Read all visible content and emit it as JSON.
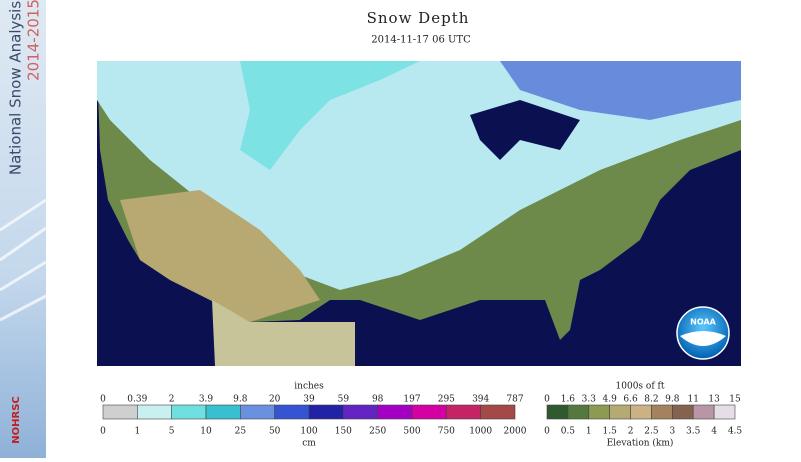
{
  "header": {
    "title": "Snow Depth",
    "subtitle": "2014-11-17 06 UTC"
  },
  "sidebar": {
    "name": "National Snow Analysis",
    "years": "2014-2015",
    "agency": "NOHRSC"
  },
  "logo": "NOAA",
  "snow_legend": {
    "top_title": "inches",
    "bottom_title": "cm",
    "top_labels": [
      0,
      0.39,
      2,
      3.9,
      9.8,
      20,
      39,
      59,
      98,
      197,
      295,
      394,
      787
    ],
    "bottom_labels": [
      0,
      1,
      5,
      10,
      25,
      50,
      100,
      150,
      250,
      500,
      750,
      1000,
      2000
    ],
    "colors": [
      "#cfcfcf",
      "#c8f0f0",
      "#6ee0e0",
      "#38c0d0",
      "#6a90e0",
      "#3454d4",
      "#2222a6",
      "#6424c4",
      "#a400c4",
      "#d400a4",
      "#c42464",
      "#a44848"
    ]
  },
  "elevation_legend": {
    "top_title": "1000s of ft",
    "bottom_title": "Elevation (km)",
    "top_labels": [
      0,
      1.6,
      3.3,
      4.9,
      6.6,
      8.2,
      9.8,
      11,
      13,
      15
    ],
    "bottom_labels": [
      0,
      0.5,
      1,
      1.5,
      2,
      2.5,
      3,
      3.5,
      4,
      4.5
    ],
    "colors": [
      "#2e5a2e",
      "#54783e",
      "#8c9a52",
      "#b4aa72",
      "#cab284",
      "#a4825e",
      "#84624e",
      "#b896a6",
      "#e6dee6"
    ]
  }
}
